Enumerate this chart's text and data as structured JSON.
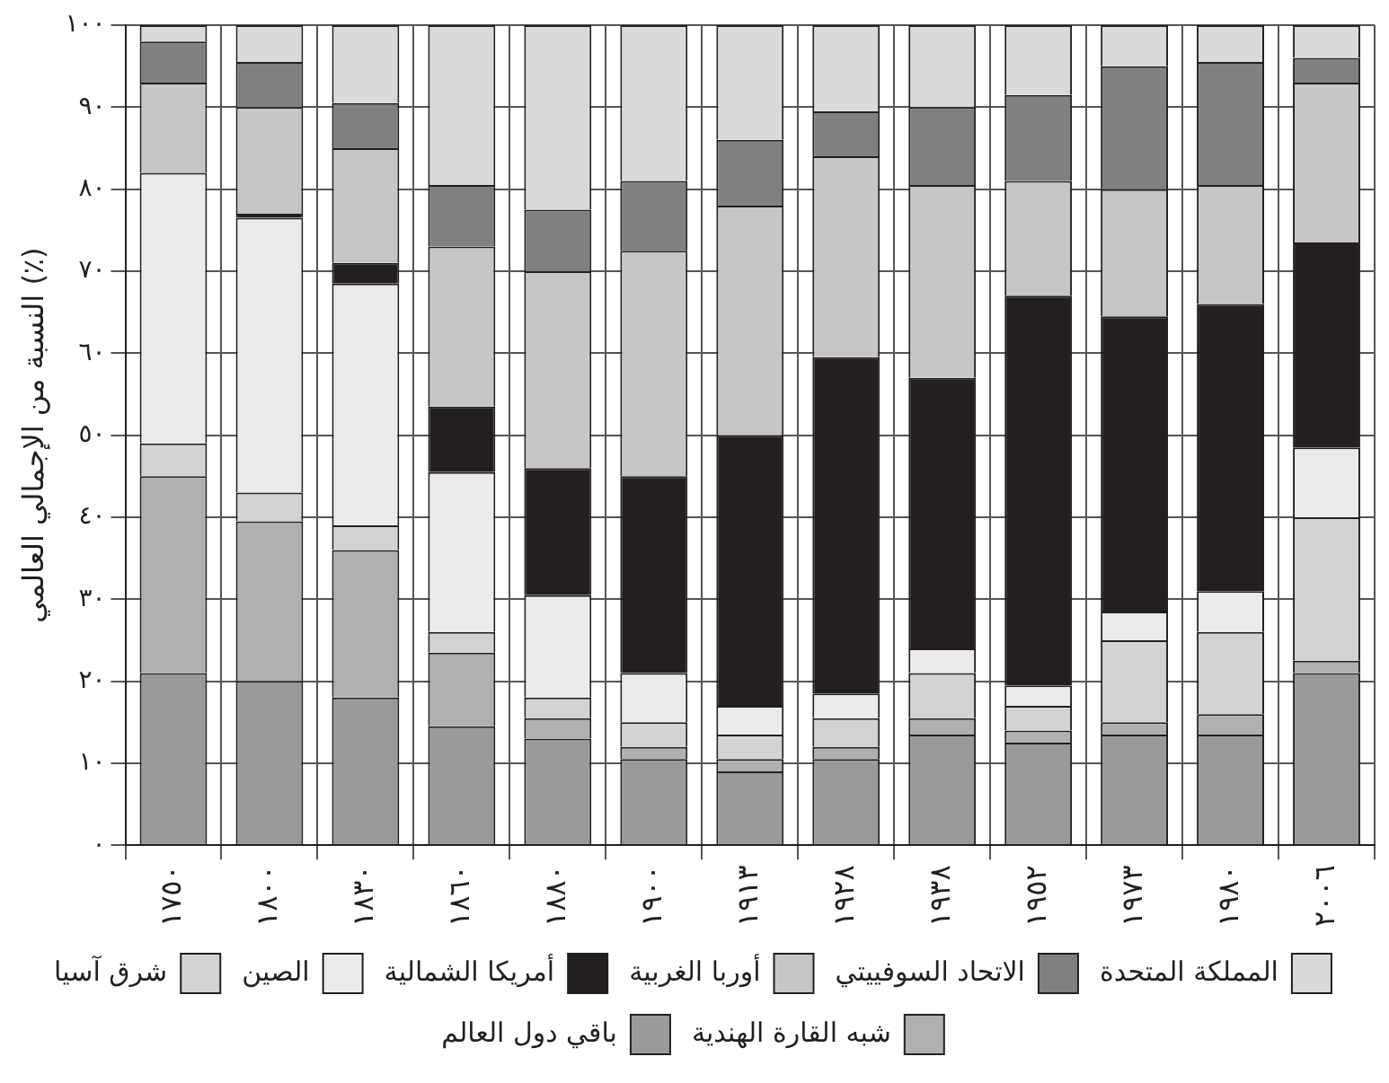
{
  "chart_data": {
    "type": "bar",
    "stacked": true,
    "ylabel": "النسبة من الإجمالي العالمي (٪)",
    "categories": [
      "١٧٥٠",
      "١٨٠٠",
      "١٨٣٠",
      "١٨٦٠",
      "١٨٨٠",
      "١٩٠٠",
      "١٩١٣",
      "١٩٢٨",
      "١٩٣٨",
      "١٩٥٢",
      "١٩٧٣",
      "١٩٨٠",
      "٢٠٠٦"
    ],
    "ylim": [
      0,
      100
    ],
    "yticks": [
      {
        "value": 0,
        "label": "٠"
      },
      {
        "value": 10,
        "label": "١٠"
      },
      {
        "value": 20,
        "label": "٢٠"
      },
      {
        "value": 30,
        "label": "٣٠"
      },
      {
        "value": 40,
        "label": "٤٠"
      },
      {
        "value": 50,
        "label": "٥٠"
      },
      {
        "value": 60,
        "label": "٦٠"
      },
      {
        "value": 70,
        "label": "٧٠"
      },
      {
        "value": 80,
        "label": "٨٠"
      },
      {
        "value": 90,
        "label": "٩٠"
      },
      {
        "value": 100,
        "label": "١٠٠"
      }
    ],
    "grid": true,
    "legend": "bottom",
    "series": [
      {
        "name": "باقي دول العالم",
        "color": "#9a9a9a",
        "values": [
          21,
          20,
          18,
          14.5,
          13,
          10.5,
          9,
          10.5,
          13.5,
          12.5,
          13.5,
          13.5,
          21
        ]
      },
      {
        "name": "شبه القارة الهندية",
        "color": "#b0b0b0",
        "values": [
          24,
          19.5,
          18,
          9,
          2.5,
          1.5,
          1.5,
          1.5,
          2,
          1.5,
          1.5,
          2.5,
          1.5
        ]
      },
      {
        "name": "شرق آسيا",
        "color": "#d1d3d4",
        "values": [
          4,
          3.5,
          3,
          2.5,
          2.5,
          3,
          3,
          3.5,
          5.5,
          3,
          10,
          10,
          17.5
        ]
      },
      {
        "name": "الصين",
        "color": "#ebebeb",
        "values": [
          33,
          33.5,
          29.5,
          19.5,
          12.5,
          6,
          3.5,
          3,
          3,
          2.5,
          3.5,
          5,
          8.5
        ]
      },
      {
        "name": "أمريكا الشمالية",
        "color": "#231f20",
        "values": [
          0,
          0.5,
          2.5,
          8,
          15.5,
          24,
          33,
          41,
          33,
          47.5,
          36,
          35,
          25
        ]
      },
      {
        "name": "أوربا الغربية",
        "color": "#c6c6c6",
        "values": [
          11,
          13,
          14,
          19.5,
          24,
          27.5,
          28,
          24.5,
          23.5,
          14,
          15.5,
          14.5,
          19.5
        ]
      },
      {
        "name": "الاتحاد السوفييتي",
        "color": "#808080",
        "values": [
          5,
          5.5,
          5.5,
          7.5,
          7.5,
          8.5,
          8,
          5.5,
          9.5,
          10.5,
          15,
          15,
          3
        ]
      },
      {
        "name": "المملكة المتحدة",
        "color": "#dadada",
        "values": [
          2,
          4.5,
          9.5,
          19.5,
          22.5,
          19,
          14,
          10.5,
          10,
          8.5,
          5,
          4.5,
          4
        ]
      }
    ]
  }
}
